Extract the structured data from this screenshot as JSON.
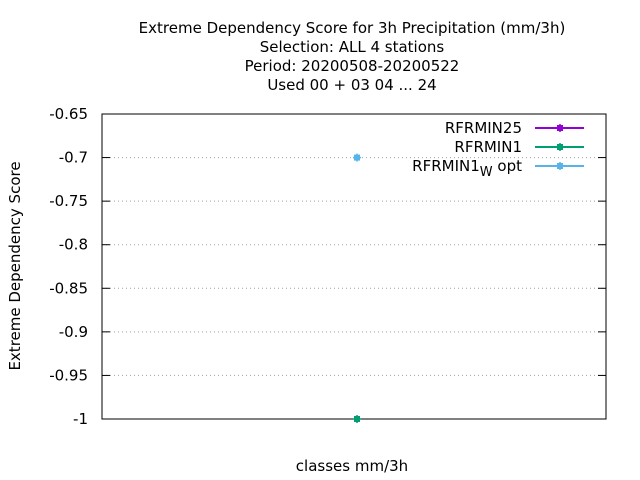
{
  "chart_data": {
    "type": "scatter",
    "title_lines": [
      "Extreme Dependency Score  for 3h Precipitation (mm/3h)",
      "Selection: ALL      4 stations",
      "Period: 20200508-20200522",
      "Used  00 + 03 04 ... 24"
    ],
    "xlabel": "classes mm/3h",
    "ylabel": "Extreme Dependency Score",
    "ylim": [
      -1.0,
      -0.65
    ],
    "yticks": [
      -0.65,
      -0.7,
      -0.75,
      -0.8,
      -0.85,
      -0.9,
      -0.95,
      -1.0
    ],
    "ytick_labels": [
      "-0.65",
      "-0.7",
      "-0.75",
      "-0.8",
      "-0.85",
      "-0.9",
      "-0.95",
      "-1"
    ],
    "grid": true,
    "legend_position": "top-right",
    "series": [
      {
        "name": "RFRMIN25",
        "color": "#9400d3",
        "points": []
      },
      {
        "name": "RFRMIN1",
        "color": "#009e73",
        "points": [
          {
            "x": 0,
            "y": -1.0
          }
        ]
      },
      {
        "name": "RFRMIN1",
        "name_subscript": "W",
        "name_suffix": "opt",
        "color": "#56b4e9",
        "points": [
          {
            "x": 0,
            "y": -0.7
          }
        ]
      }
    ]
  }
}
